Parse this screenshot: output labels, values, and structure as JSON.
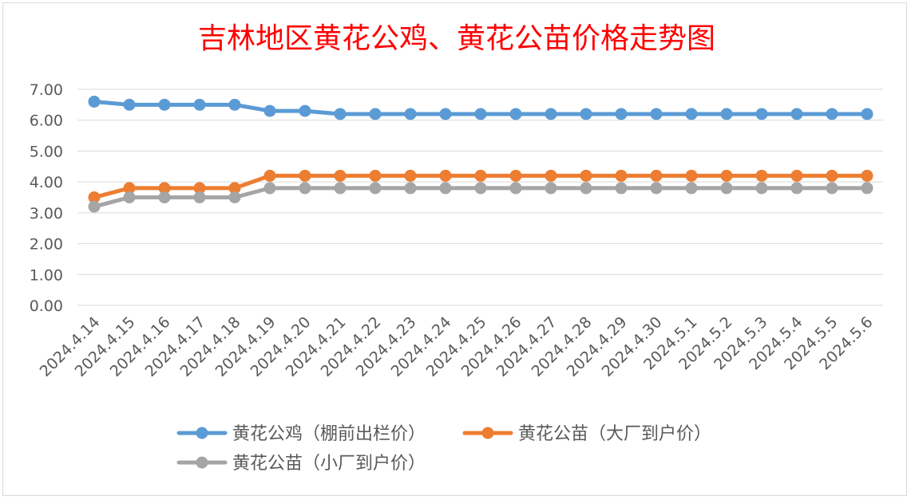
{
  "chart_data": {
    "type": "line",
    "title": "吉林地区黄花公鸡、黄花公苗价格走势图",
    "title_color": "#ff0000",
    "categories": [
      "2024.4.14",
      "2024.4.15",
      "2024.4.16",
      "2024.4.17",
      "2024.4.18",
      "2024.4.19",
      "2024.4.20",
      "2024.4.21",
      "2024.4.22",
      "2024.4.23",
      "2024.4.24",
      "2024.4.25",
      "2024.4.26",
      "2024.4.27",
      "2024.4.28",
      "2024.4.29",
      "2024.4.30",
      "2024.5.1",
      "2024.5.2",
      "2024.5.3",
      "2024.5.4",
      "2024.5.5",
      "2024.5.6"
    ],
    "yticks": [
      "0.00",
      "1.00",
      "2.00",
      "3.00",
      "4.00",
      "5.00",
      "6.00",
      "7.00"
    ],
    "ylim": [
      0,
      7
    ],
    "grid": true,
    "legend_position": "bottom",
    "xlabel": "",
    "ylabel": "",
    "series": [
      {
        "name": "黄花公鸡（棚前出栏价）",
        "color": "#5b9bd5",
        "values": [
          6.6,
          6.5,
          6.5,
          6.5,
          6.5,
          6.3,
          6.3,
          6.2,
          6.2,
          6.2,
          6.2,
          6.2,
          6.2,
          6.2,
          6.2,
          6.2,
          6.2,
          6.2,
          6.2,
          6.2,
          6.2,
          6.2,
          6.2
        ]
      },
      {
        "name": "黄花公苗（大厂到户价）",
        "color": "#ed7d31",
        "values": [
          3.5,
          3.8,
          3.8,
          3.8,
          3.8,
          4.2,
          4.2,
          4.2,
          4.2,
          4.2,
          4.2,
          4.2,
          4.2,
          4.2,
          4.2,
          4.2,
          4.2,
          4.2,
          4.2,
          4.2,
          4.2,
          4.2,
          4.2
        ]
      },
      {
        "name": "黄花公苗（小厂到户价）",
        "color": "#a5a5a5",
        "values": [
          3.2,
          3.5,
          3.5,
          3.5,
          3.5,
          3.8,
          3.8,
          3.8,
          3.8,
          3.8,
          3.8,
          3.8,
          3.8,
          3.8,
          3.8,
          3.8,
          3.8,
          3.8,
          3.8,
          3.8,
          3.8,
          3.8,
          3.8
        ]
      }
    ]
  }
}
